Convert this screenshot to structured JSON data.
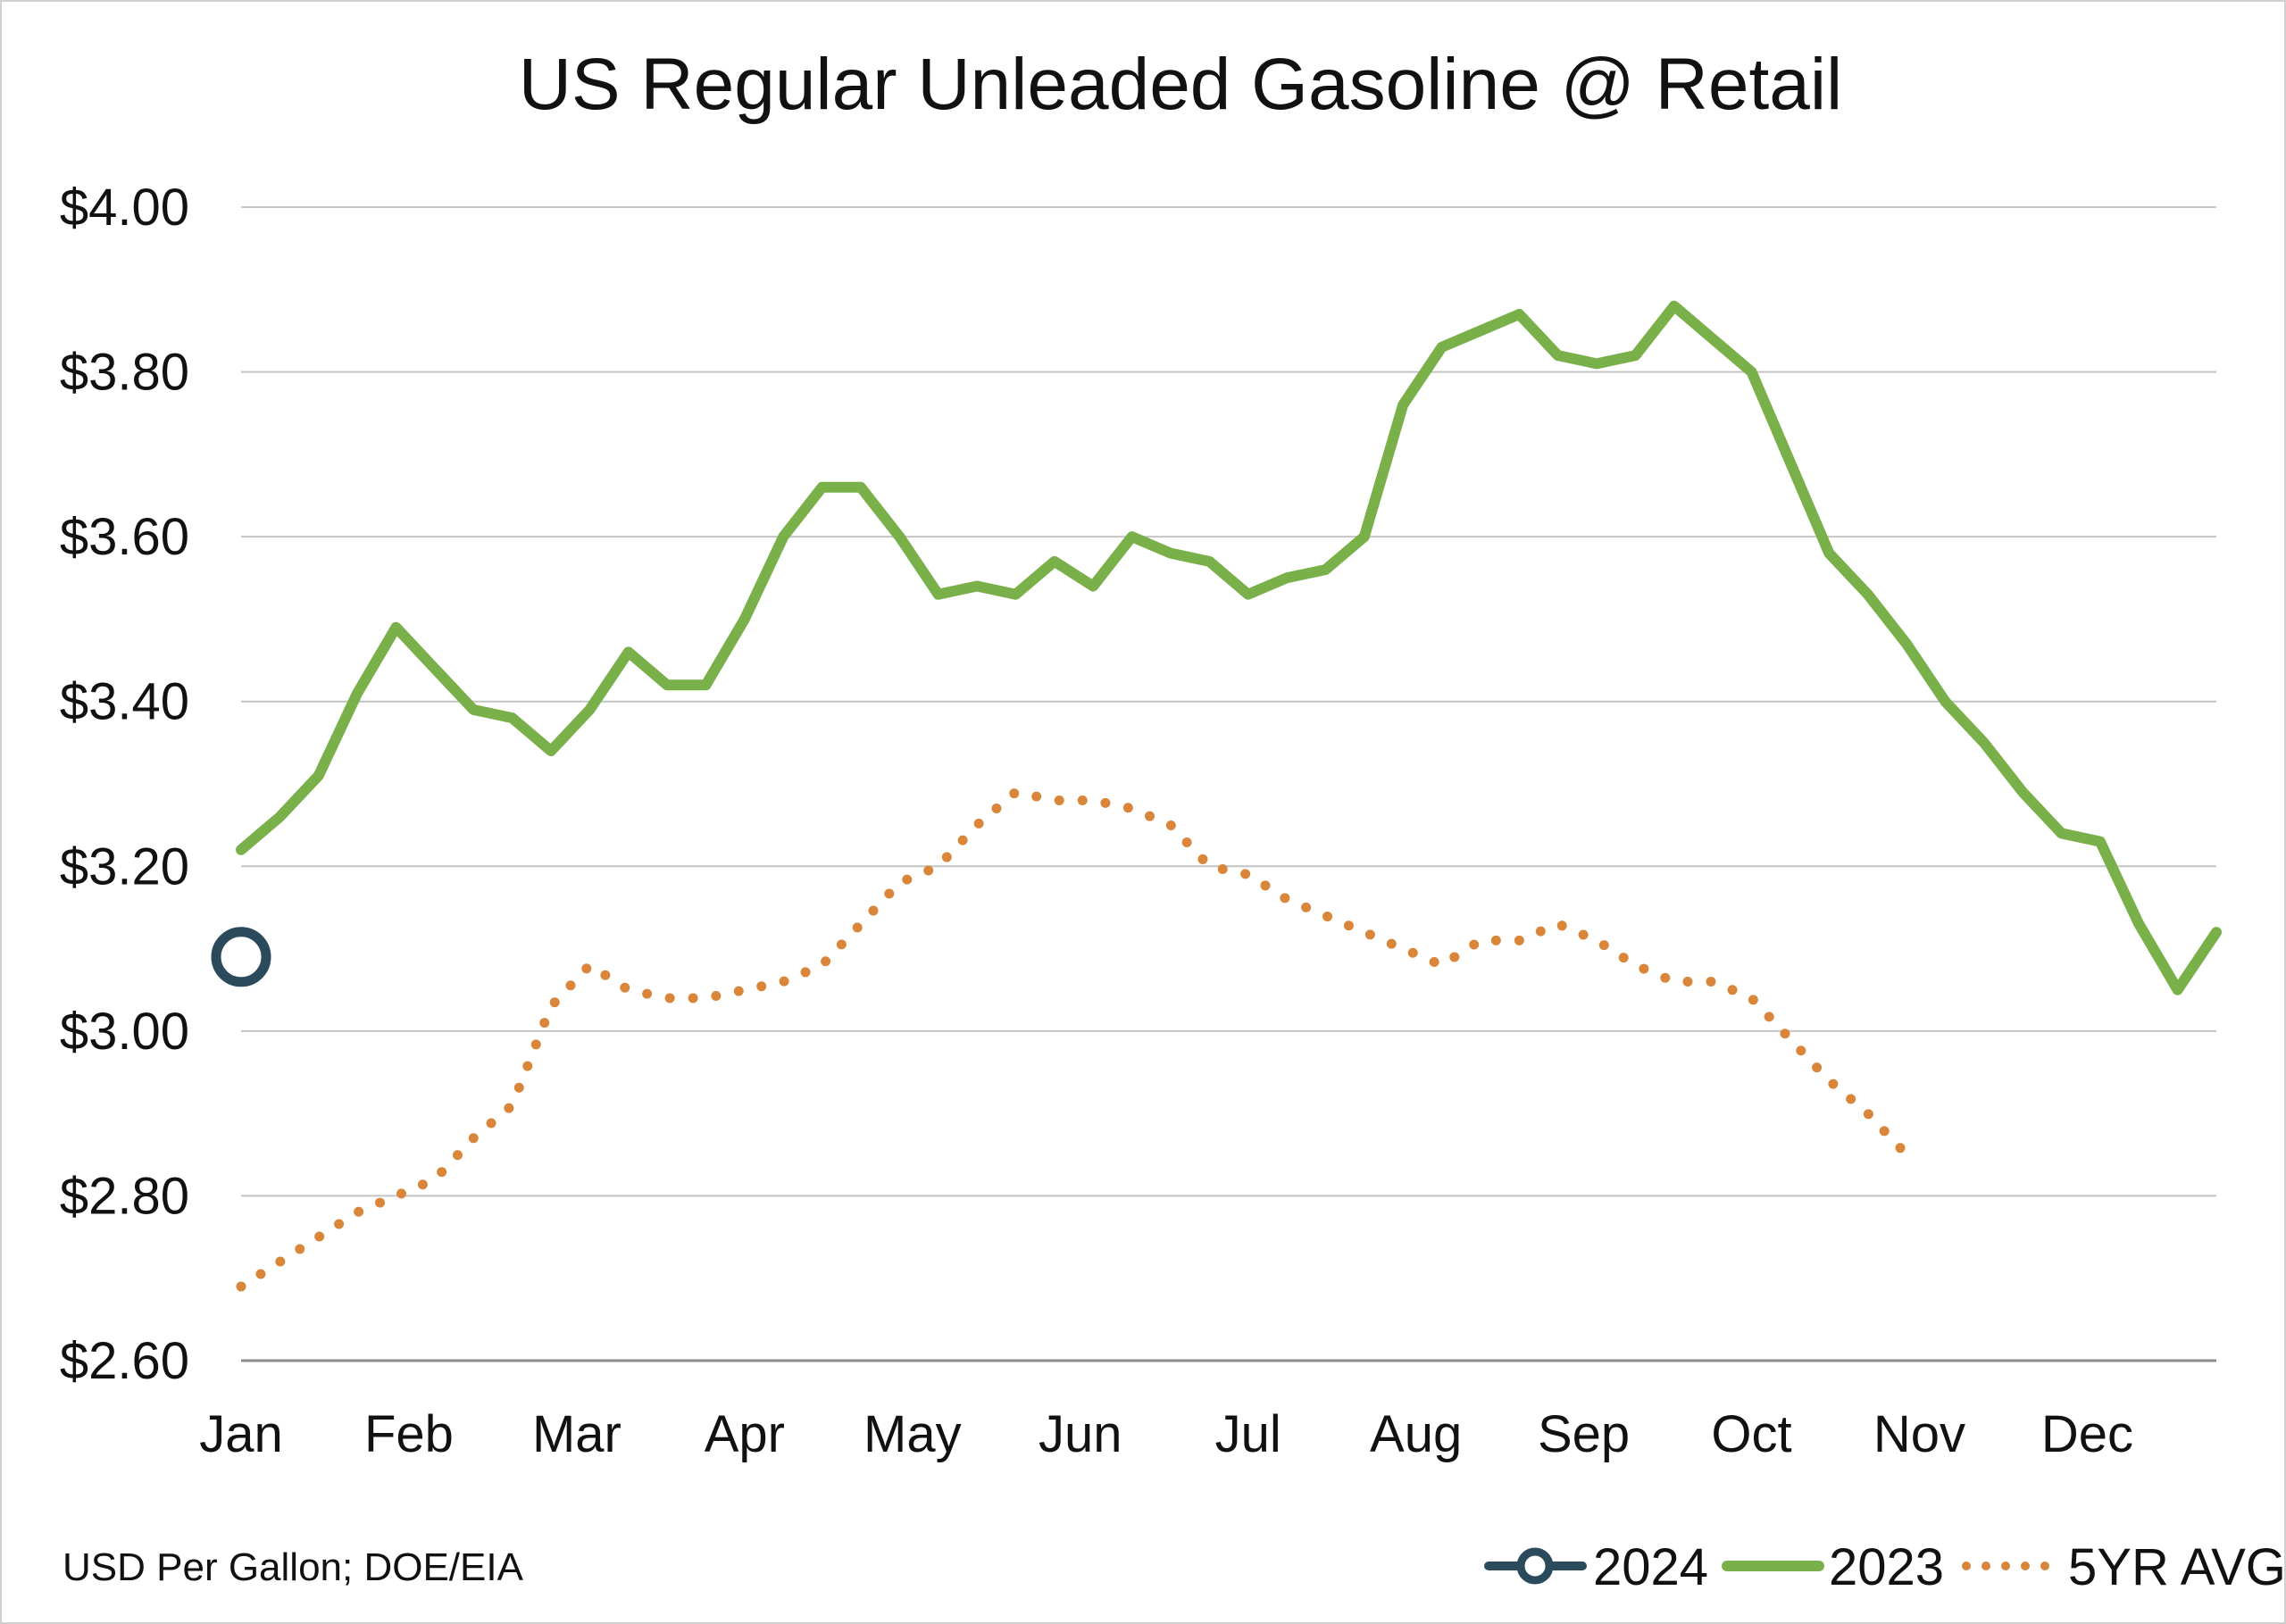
{
  "chart_data": {
    "type": "line",
    "title": "US Regular Unleaded Gasoline @ Retail",
    "note": "USD Per Gallon; DOE/EIA",
    "xlabel": "",
    "ylabel": "",
    "ylim": [
      2.6,
      4.0
    ],
    "yticks": [
      4.0,
      3.8,
      3.6,
      3.4,
      3.2,
      3.0,
      2.8,
      2.6
    ],
    "ytick_labels": [
      "$4.00",
      "$3.80",
      "$3.60",
      "$3.40",
      "$3.20",
      "$3.00",
      "$2.80",
      "$2.60"
    ],
    "months": [
      "Jan",
      "Feb",
      "Mar",
      "Apr",
      "May",
      "Jun",
      "Jul",
      "Aug",
      "Sep",
      "Oct",
      "Nov",
      "Dec"
    ],
    "grid": true,
    "legend_position": "bottom-right",
    "series": [
      {
        "name": "2024",
        "style": "marker",
        "color": "#2b4a5c",
        "values": [
          3.09
        ]
      },
      {
        "name": "2023",
        "style": "solid",
        "color": "#7ab04a",
        "values": [
          3.22,
          3.26,
          3.31,
          3.41,
          3.49,
          3.44,
          3.39,
          3.38,
          3.34,
          3.39,
          3.46,
          3.42,
          3.42,
          3.5,
          3.6,
          3.66,
          3.66,
          3.6,
          3.53,
          3.54,
          3.53,
          3.57,
          3.54,
          3.6,
          3.58,
          3.57,
          3.53,
          3.55,
          3.56,
          3.6,
          3.76,
          3.83,
          3.85,
          3.87,
          3.82,
          3.81,
          3.82,
          3.88,
          3.84,
          3.8,
          3.69,
          3.58,
          3.53,
          3.47,
          3.4,
          3.35,
          3.29,
          3.24,
          3.23,
          3.13,
          3.05,
          3.12
        ]
      },
      {
        "name": "5YR AVG",
        "style": "dotted",
        "color": "#d9863a",
        "values": [
          2.69,
          2.72,
          2.75,
          2.78,
          2.8,
          2.82,
          2.87,
          2.91,
          3.03,
          3.08,
          3.05,
          3.04,
          3.04,
          3.05,
          3.06,
          3.08,
          3.13,
          3.18,
          3.2,
          3.25,
          3.29,
          3.28,
          3.28,
          3.27,
          3.25,
          3.2,
          3.19,
          3.16,
          3.14,
          3.12,
          3.1,
          3.08,
          3.11,
          3.11,
          3.13,
          3.11,
          3.08,
          3.06,
          3.06,
          3.04,
          2.99,
          2.94,
          2.9,
          2.85
        ]
      }
    ]
  }
}
